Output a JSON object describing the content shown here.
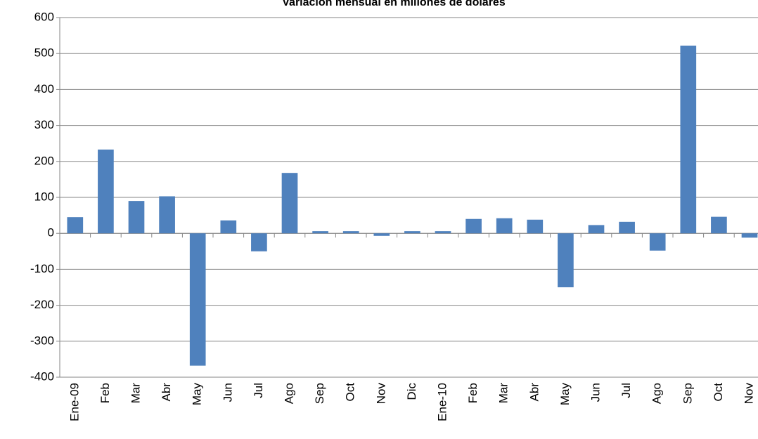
{
  "chart_data": {
    "type": "bar",
    "title": "Variación mensual en millones de dólares",
    "categories": [
      "Ene-09",
      "Feb",
      "Mar",
      "Abr",
      "May",
      "Jun",
      "Jul",
      "Ago",
      "Sep",
      "Oct",
      "Nov",
      "Dic",
      "Ene-10",
      "Feb",
      "Mar",
      "Abr",
      "May",
      "Jun",
      "Jul",
      "Ago",
      "Sep",
      "Oct",
      "Nov"
    ],
    "values": [
      45,
      233,
      90,
      103,
      -368,
      36,
      -50,
      168,
      6,
      6,
      -7,
      6,
      6,
      40,
      42,
      38,
      -150,
      23,
      32,
      -48,
      522,
      46,
      -12
    ],
    "color": "#4f81bd",
    "ylim": [
      -400,
      600
    ],
    "yticks": [
      -400,
      -300,
      -200,
      -100,
      0,
      100,
      200,
      300,
      400,
      500,
      600
    ],
    "grid": true
  }
}
